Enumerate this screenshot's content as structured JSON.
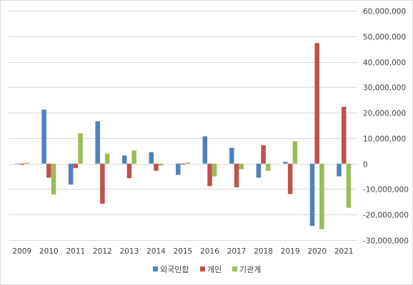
{
  "chart_data": {
    "type": "bar",
    "categories": [
      "2009",
      "2010",
      "2011",
      "2012",
      "2013",
      "2014",
      "2015",
      "2016",
      "2017",
      "2018",
      "2019",
      "2020",
      "2021"
    ],
    "series": [
      {
        "name": "외국인합",
        "color": "#4f81bd",
        "values": [
          0,
          21200000,
          -8200000,
          16600000,
          3200000,
          4500000,
          -4400000,
          10700000,
          6200000,
          -5500000,
          700000,
          -24400000,
          -5000000
        ]
      },
      {
        "name": "개인",
        "color": "#c0504d",
        "values": [
          -400000,
          -5500000,
          -1700000,
          -15700000,
          -5700000,
          -2800000,
          -400000,
          -8800000,
          -9300000,
          7200000,
          -11900000,
          47300000,
          22300000
        ]
      },
      {
        "name": "기관계",
        "color": "#9bbb59",
        "values": [
          300000,
          -12100000,
          11900000,
          4000000,
          5200000,
          -700000,
          400000,
          -5000000,
          -2200000,
          -2800000,
          8800000,
          -25700000,
          -17300000
        ]
      }
    ],
    "y_ticks": [
      "60,000,000",
      "50,000,000",
      "40,000,000",
      "30,000,000",
      "20,000,000",
      "10,000,000",
      "0",
      "-10,000,000",
      "-20,000,000",
      "-30,000,000"
    ],
    "ylim": [
      -30000000,
      60000000
    ],
    "y_axis_side": "right",
    "grid": true,
    "legend_position": "bottom"
  }
}
